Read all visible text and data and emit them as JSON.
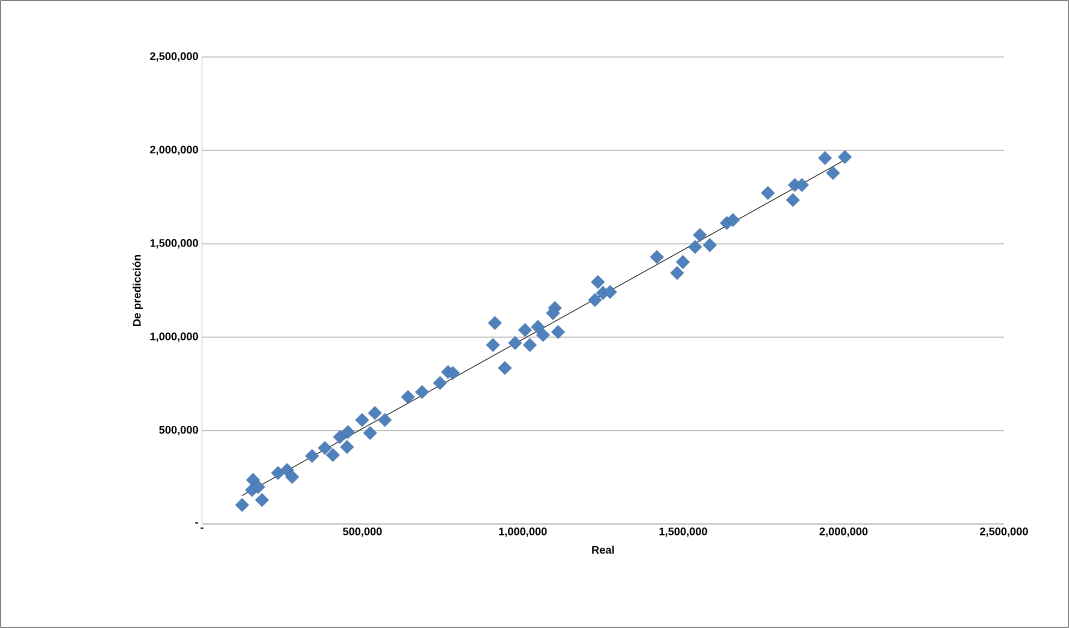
{
  "chart_data": {
    "type": "scatter",
    "xlabel": "Real",
    "ylabel": "De predicción",
    "marker": "diamond",
    "grid": "y",
    "xlim": [
      0,
      2500000
    ],
    "ylim": [
      0,
      2500000
    ],
    "xticks": [
      {
        "value": 0,
        "label": "-"
      },
      {
        "value": 500000,
        "label": "500,000"
      },
      {
        "value": 1000000,
        "label": "1,000,000"
      },
      {
        "value": 1500000,
        "label": "1,500,000"
      },
      {
        "value": 2000000,
        "label": "2,000,000"
      },
      {
        "value": 2500000,
        "label": "2,500,000"
      }
    ],
    "yticks": [
      {
        "value": 0,
        "label": "-"
      },
      {
        "value": 500000,
        "label": "500,000"
      },
      {
        "value": 1000000,
        "label": "1,000,000"
      },
      {
        "value": 1500000,
        "label": "1,500,000"
      },
      {
        "value": 2000000,
        "label": "2,000,000"
      },
      {
        "value": 2500000,
        "label": "2,500,000"
      }
    ],
    "series": [
      {
        "color": "#4f81bd",
        "x": [
          125000,
          159000,
          156000,
          175000,
          187000,
          237000,
          265000,
          281000,
          343000,
          383000,
          408000,
          452000,
          430000,
          455000,
          499000,
          524000,
          539000,
          570000,
          642000,
          686000,
          742000,
          767000,
          782000,
          913000,
          907000,
          944000,
          976000,
          1007000,
          1022000,
          1047000,
          1063000,
          1110000,
          1100000,
          1094000,
          1234000,
          1225000,
          1250000,
          1272000,
          1418000,
          1499000,
          1481000,
          1537000,
          1552000,
          1583000,
          1636000,
          1655000,
          1764000,
          1848000,
          1870000,
          1842000,
          1942000,
          2004000,
          1967000
        ],
        "values": [
          102000,
          236000,
          182000,
          198000,
          128000,
          273000,
          289000,
          252000,
          364000,
          407000,
          369000,
          412000,
          466000,
          492000,
          557000,
          487000,
          594000,
          557000,
          680000,
          707000,
          755000,
          814000,
          808000,
          1076000,
          958000,
          835000,
          969000,
          1038000,
          958000,
          1055000,
          1012000,
          1028000,
          1156000,
          1129000,
          1295000,
          1199000,
          1237000,
          1242000,
          1429000,
          1402000,
          1344000,
          1483000,
          1547000,
          1493000,
          1611000,
          1627000,
          1772000,
          1815000,
          1815000,
          1734000,
          1959000,
          1965000,
          1879000
        ]
      },
      {
        "type": "line",
        "color": "#000000",
        "marker": "none",
        "x": [
          125000,
          2004000
        ],
        "values": [
          152000,
          1949000
        ]
      }
    ]
  }
}
